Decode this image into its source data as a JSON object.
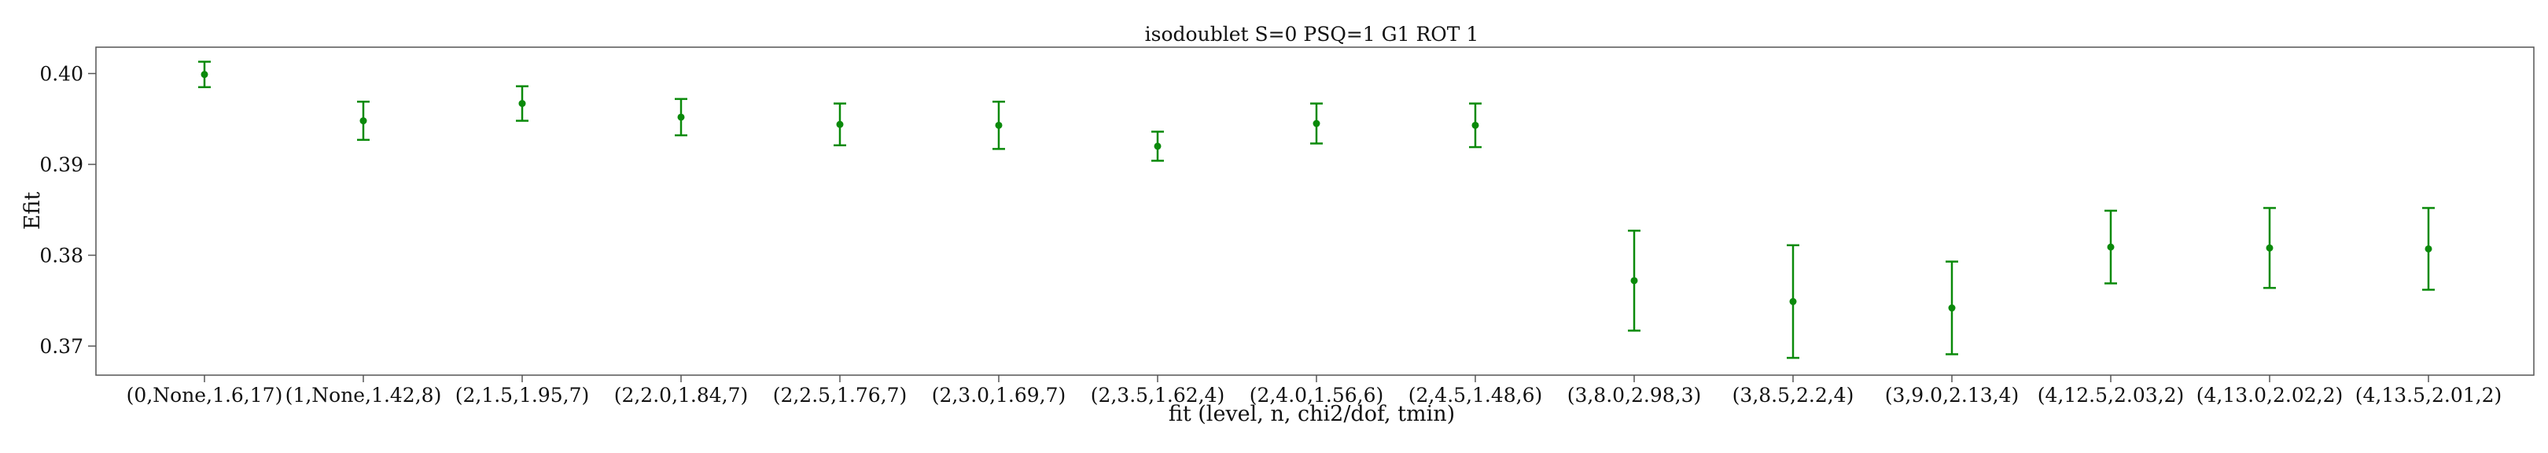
{
  "chart_data": {
    "type": "scatter",
    "title": "isodoublet S=0 PSQ=1 G1 ROT 1",
    "xlabel": "fit (level, n, chi2/dof, tmin)",
    "ylabel": "Efit",
    "categories": [
      "(0,None,1.6,17)",
      "(1,None,1.42,8)",
      "(2,1.5,1.95,7)",
      "(2,2.0,1.84,7)",
      "(2,2.5,1.76,7)",
      "(2,3.0,1.69,7)",
      "(2,3.5,1.62,4)",
      "(2,4.0,1.56,6)",
      "(2,4.5,1.48,6)",
      "(3,8.0,2.98,3)",
      "(3,8.5,2.2,4)",
      "(3,9.0,2.13,4)",
      "(4,12.5,2.03,2)",
      "(4,13.0,2.02,2)",
      "(4,13.5,2.01,2)"
    ],
    "series": [
      {
        "values": [
          0.3999,
          0.3948,
          0.3967,
          0.3952,
          0.3944,
          0.3943,
          0.392,
          0.3945,
          0.3943,
          0.3772,
          0.3749,
          0.3742,
          0.3809,
          0.3808,
          0.3807
        ],
        "errors": [
          0.0014,
          0.0021,
          0.0019,
          0.002,
          0.0023,
          0.0026,
          0.0016,
          0.0022,
          0.0024,
          0.0055,
          0.0062,
          0.0051,
          0.004,
          0.0044,
          0.0045
        ]
      }
    ],
    "yticks": [
      0.37,
      0.38,
      0.39,
      0.4
    ],
    "ytick_labels": [
      "0.37",
      "0.38",
      "0.39",
      "0.40"
    ],
    "ylim": [
      0.3668,
      0.4029
    ],
    "grid": false,
    "colors": {
      "series": "#0a8a0a",
      "axes": "#555555"
    }
  }
}
